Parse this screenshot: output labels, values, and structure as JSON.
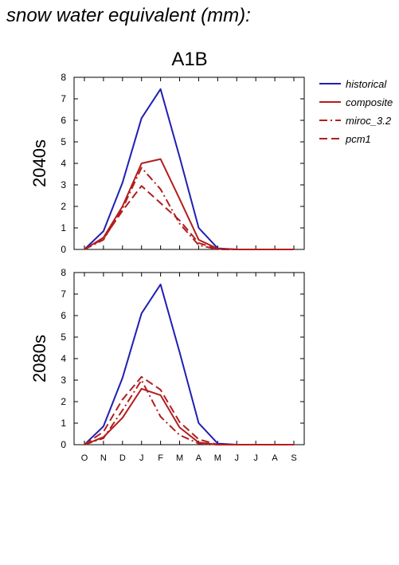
{
  "figure": {
    "title": "snow water equivalent (mm):",
    "scenario": "A1B"
  },
  "legend": {
    "items": [
      {
        "label": "historical",
        "color": "#1f1fb4",
        "dash": "solid"
      },
      {
        "label": "composite",
        "color": "#b21e1e",
        "dash": "solid"
      },
      {
        "label": "miroc_3.2",
        "color": "#b21e1e",
        "dash": "dashdot"
      },
      {
        "label": "pcm1",
        "color": "#b21e1e",
        "dash": "dash"
      }
    ]
  },
  "chart_data": [
    {
      "type": "line",
      "panel_label": "2040s",
      "title": "A1B",
      "categories": [
        "O",
        "N",
        "D",
        "J",
        "F",
        "M",
        "A",
        "M",
        "J",
        "J",
        "A",
        "S"
      ],
      "ylim": [
        0,
        8
      ],
      "yticks": [
        0,
        1,
        2,
        3,
        4,
        5,
        6,
        7,
        8
      ],
      "series": [
        {
          "name": "historical",
          "values": [
            0.0,
            0.85,
            3.1,
            6.1,
            7.45,
            4.3,
            1.0,
            0.05,
            0.0,
            0.0,
            0.0,
            0.0
          ]
        },
        {
          "name": "composite",
          "values": [
            0.0,
            0.55,
            2.0,
            4.0,
            4.2,
            2.35,
            0.45,
            0.03,
            0.0,
            0.0,
            0.0,
            0.0
          ]
        },
        {
          "name": "miroc_3.2",
          "values": [
            0.0,
            0.45,
            1.9,
            3.8,
            2.8,
            1.2,
            0.2,
            0.0,
            0.0,
            0.0,
            0.0,
            0.0
          ]
        },
        {
          "name": "pcm1",
          "values": [
            0.0,
            0.5,
            1.8,
            2.95,
            2.15,
            1.35,
            0.3,
            0.02,
            0.0,
            0.0,
            0.0,
            0.0
          ]
        }
      ]
    },
    {
      "type": "line",
      "panel_label": "2080s",
      "categories": [
        "O",
        "N",
        "D",
        "J",
        "F",
        "M",
        "A",
        "M",
        "J",
        "J",
        "A",
        "S"
      ],
      "ylim": [
        0,
        8
      ],
      "yticks": [
        0,
        1,
        2,
        3,
        4,
        5,
        6,
        7,
        8
      ],
      "series": [
        {
          "name": "historical",
          "values": [
            0.0,
            0.85,
            3.1,
            6.1,
            7.45,
            4.3,
            1.0,
            0.05,
            0.0,
            0.0,
            0.0,
            0.0
          ]
        },
        {
          "name": "composite",
          "values": [
            0.0,
            0.35,
            1.25,
            2.6,
            2.3,
            0.8,
            0.1,
            0.0,
            0.0,
            0.0,
            0.0,
            0.0
          ]
        },
        {
          "name": "miroc_3.2",
          "values": [
            0.0,
            0.3,
            1.6,
            3.0,
            1.3,
            0.45,
            0.05,
            0.0,
            0.0,
            0.0,
            0.0,
            0.0
          ]
        },
        {
          "name": "pcm1",
          "values": [
            0.0,
            0.6,
            2.1,
            3.15,
            2.55,
            1.05,
            0.25,
            0.0,
            0.0,
            0.0,
            0.0,
            0.0
          ]
        }
      ]
    }
  ]
}
